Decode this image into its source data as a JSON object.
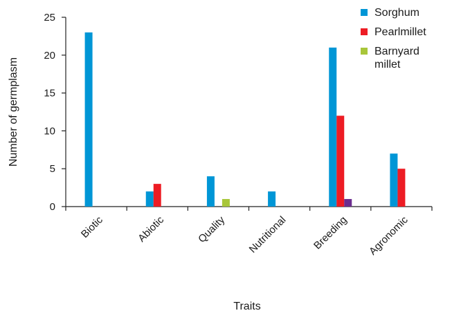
{
  "chart_data": {
    "type": "bar",
    "xlabel": "Traits",
    "ylabel": "Number of germplasm",
    "ylim": [
      0,
      25
    ],
    "yticks": [
      0,
      5,
      10,
      15,
      20,
      25
    ],
    "grid": false,
    "legend_position": "top-right",
    "categories": [
      "Biotic",
      "Abiotic",
      "Quality",
      "Nutritional",
      "Breeding",
      "Agronomic"
    ],
    "series": [
      {
        "name": "Sorghum",
        "color": "#0096d6",
        "values": [
          23,
          2,
          4,
          2,
          21,
          7
        ]
      },
      {
        "name": "Pearlmillet",
        "color": "#ed1c24",
        "values": [
          0,
          3,
          0,
          0,
          12,
          5
        ]
      },
      {
        "name": "Barnyard millet",
        "color": "#a8c f3a",
        "values": [
          0,
          0,
          1,
          0,
          0,
          0
        ]
      },
      {
        "name": "",
        "color": "#6b2d8f",
        "values": [
          0,
          0,
          0,
          0,
          1,
          0
        ]
      }
    ],
    "legend": [
      {
        "label_lines": [
          "Sorghum"
        ],
        "color": "#0096d6"
      },
      {
        "label_lines": [
          "Pearlmillet"
        ],
        "color": "#ed1c24"
      },
      {
        "label_lines": [
          "Barnyard",
          "millet"
        ],
        "color": "#a8c63a"
      }
    ]
  }
}
